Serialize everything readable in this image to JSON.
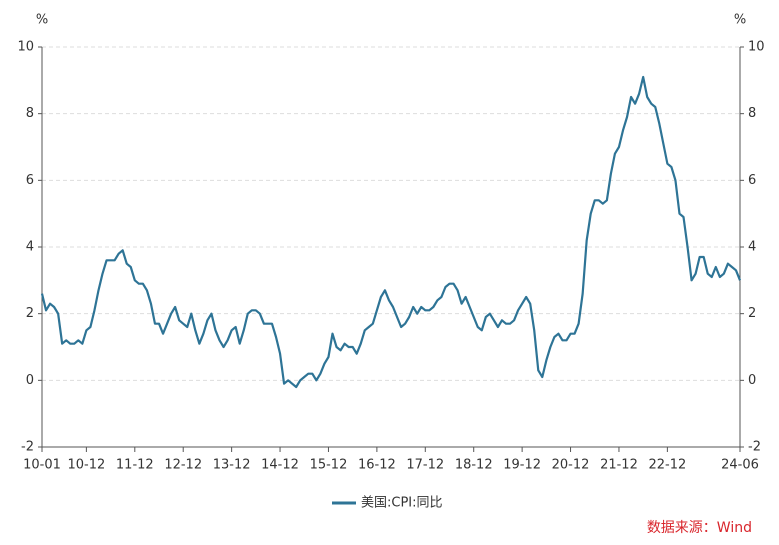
{
  "chart_data": {
    "type": "line",
    "y_unit": "%",
    "y2_unit": "%",
    "categories": [
      "10-01",
      null,
      null,
      null,
      null,
      null,
      null,
      null,
      null,
      null,
      null,
      "10-12",
      null,
      null,
      null,
      null,
      null,
      null,
      null,
      null,
      null,
      null,
      null,
      "11-12",
      null,
      null,
      null,
      null,
      null,
      null,
      null,
      null,
      null,
      null,
      null,
      "12-12",
      null,
      null,
      null,
      null,
      null,
      null,
      null,
      null,
      null,
      null,
      null,
      "13-12",
      null,
      null,
      null,
      null,
      null,
      null,
      null,
      null,
      null,
      null,
      null,
      "14-12",
      null,
      null,
      null,
      null,
      null,
      null,
      null,
      null,
      null,
      null,
      null,
      "15-12",
      null,
      null,
      null,
      null,
      null,
      null,
      null,
      null,
      null,
      null,
      null,
      "16-12",
      null,
      null,
      null,
      null,
      null,
      null,
      null,
      null,
      null,
      null,
      null,
      "17-12",
      null,
      null,
      null,
      null,
      null,
      null,
      null,
      null,
      null,
      null,
      null,
      "18-12",
      null,
      null,
      null,
      null,
      null,
      null,
      null,
      null,
      null,
      null,
      null,
      "19-12",
      null,
      null,
      null,
      null,
      null,
      null,
      null,
      null,
      null,
      null,
      null,
      "20-12",
      null,
      null,
      null,
      null,
      null,
      null,
      null,
      null,
      null,
      null,
      null,
      "21-12",
      null,
      null,
      null,
      null,
      null,
      null,
      null,
      null,
      null,
      null,
      null,
      "22-12",
      null,
      null,
      null,
      null,
      null,
      null,
      null,
      null,
      null,
      null,
      null,
      null,
      null,
      null,
      null,
      null,
      null,
      "24-06"
    ],
    "series": [
      {
        "name": "美国:CPI:同比",
        "color": "#2e7496",
        "values": [
          2.6,
          2.1,
          2.3,
          2.2,
          2.0,
          1.1,
          1.2,
          1.1,
          1.1,
          1.2,
          1.1,
          1.5,
          1.6,
          2.1,
          2.7,
          3.2,
          3.6,
          3.6,
          3.6,
          3.8,
          3.9,
          3.5,
          3.4,
          3.0,
          2.9,
          2.9,
          2.7,
          2.3,
          1.7,
          1.7,
          1.4,
          1.7,
          2.0,
          2.2,
          1.8,
          1.7,
          1.6,
          2.0,
          1.5,
          1.1,
          1.4,
          1.8,
          2.0,
          1.5,
          1.2,
          1.0,
          1.2,
          1.5,
          1.6,
          1.1,
          1.5,
          2.0,
          2.1,
          2.1,
          2.0,
          1.7,
          1.7,
          1.7,
          1.3,
          0.8,
          -0.1,
          0.0,
          -0.1,
          -0.2,
          0.0,
          0.1,
          0.2,
          0.2,
          0.0,
          0.2,
          0.5,
          0.7,
          1.4,
          1.0,
          0.9,
          1.1,
          1.0,
          1.0,
          0.8,
          1.1,
          1.5,
          1.6,
          1.7,
          2.1,
          2.5,
          2.7,
          2.4,
          2.2,
          1.9,
          1.6,
          1.7,
          1.9,
          2.2,
          2.0,
          2.2,
          2.1,
          2.1,
          2.2,
          2.4,
          2.5,
          2.8,
          2.9,
          2.9,
          2.7,
          2.3,
          2.5,
          2.2,
          1.9,
          1.6,
          1.5,
          1.9,
          2.0,
          1.8,
          1.6,
          1.8,
          1.7,
          1.7,
          1.8,
          2.1,
          2.3,
          2.5,
          2.3,
          1.5,
          0.3,
          0.1,
          0.6,
          1.0,
          1.3,
          1.4,
          1.2,
          1.2,
          1.4,
          1.4,
          1.7,
          2.6,
          4.2,
          5.0,
          5.4,
          5.4,
          5.3,
          5.4,
          6.2,
          6.8,
          7.0,
          7.5,
          7.9,
          8.5,
          8.3,
          8.6,
          9.1,
          8.5,
          8.3,
          8.2,
          7.7,
          7.1,
          6.5,
          6.4,
          6.0,
          5.0,
          4.9,
          4.0,
          3.0,
          3.2,
          3.7,
          3.7,
          3.2,
          3.1,
          3.4,
          3.1,
          3.2,
          3.5,
          3.4,
          3.3,
          3.0
        ]
      }
    ],
    "ylim": [
      -2,
      10
    ],
    "yticks": [
      -2,
      0,
      2,
      4,
      6,
      8,
      10
    ],
    "y2lim": [
      -2,
      10
    ],
    "y2ticks": [
      -2,
      0,
      2,
      4,
      6,
      8,
      10
    ],
    "grid": true,
    "source": "数据来源：Wind"
  }
}
